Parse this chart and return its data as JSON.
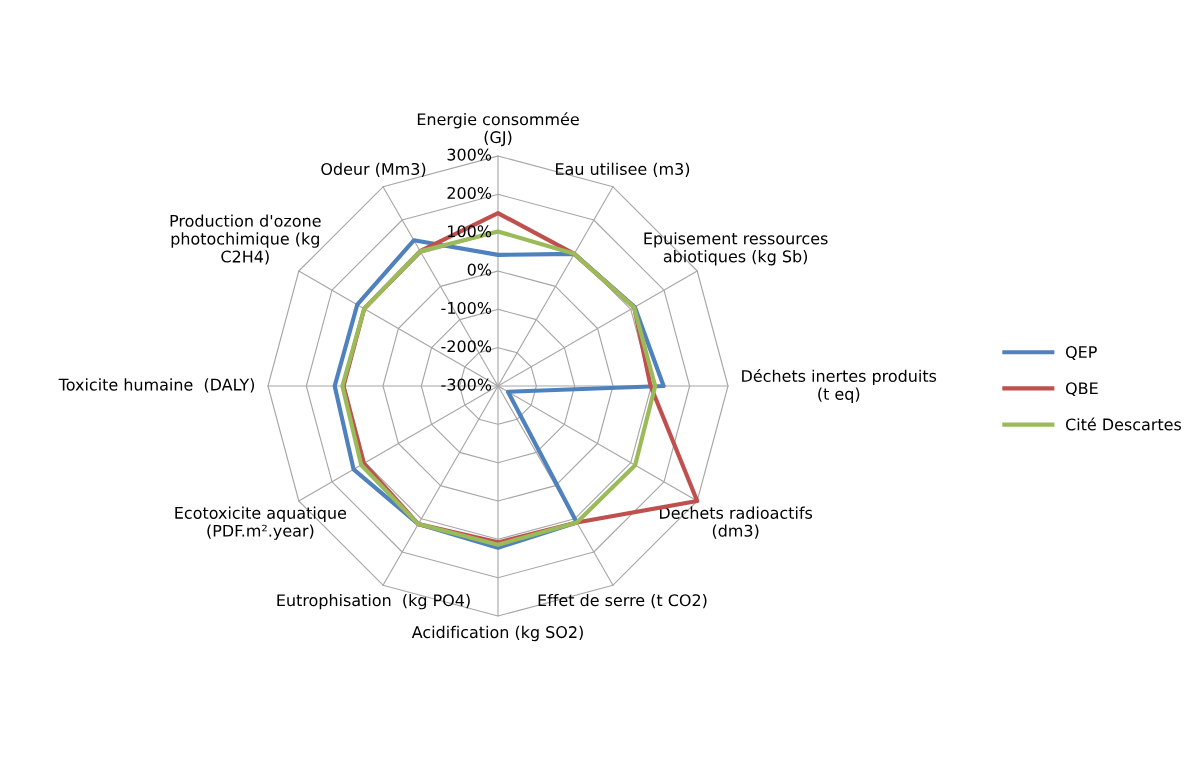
{
  "chart_data": {
    "type": "radar",
    "categories": [
      "Energie consommée\n(GJ)",
      "Eau utilisee (m3)",
      "Epuisement ressources\nabiotiques (kg Sb)",
      "Déchets inertes produits\n(t eq)",
      "Dechets radioactifs\n(dm3)",
      "Effet de serre (t CO2)",
      "Acidification (kg SO2)",
      "Eutrophisation  (kg PO4)",
      "Ecotoxicite aquatique\n(PDF.m².year)",
      "Toxicite humaine  (DALY)",
      "Production d'ozone\nphotochimique (kg\nC2H4)",
      "Odeur (Mm3)"
    ],
    "series": [
      {
        "name": "QEP",
        "color": "#4f81bd",
        "values": [
          42,
          98,
          112,
          132,
          -270,
          111,
          122,
          116,
          135,
          126,
          124,
          139
        ]
      },
      {
        "name": "QBE",
        "color": "#c0504d",
        "values": [
          151,
          98,
          110,
          98,
          300,
          111,
          108,
          116,
          104,
          103,
          103,
          106
        ]
      },
      {
        "name": "Cité Descartes",
        "color": "#9bbb59",
        "values": [
          103,
          98,
          110,
          110,
          113,
          111,
          114,
          116,
          112,
          106,
          103,
          106
        ]
      }
    ],
    "ylim": [
      -300,
      300
    ],
    "yticks": [
      {
        "value": -300,
        "label": "-300%"
      },
      {
        "value": -200,
        "label": "-200%"
      },
      {
        "value": -100,
        "label": "-100%"
      },
      {
        "value": 0,
        "label": "0%"
      },
      {
        "value": 100,
        "label": "100%"
      },
      {
        "value": 200,
        "label": "200%"
      },
      {
        "value": 300,
        "label": "300%"
      }
    ],
    "grid": true,
    "legend": "right",
    "line_style": "solid",
    "marker": "none"
  }
}
